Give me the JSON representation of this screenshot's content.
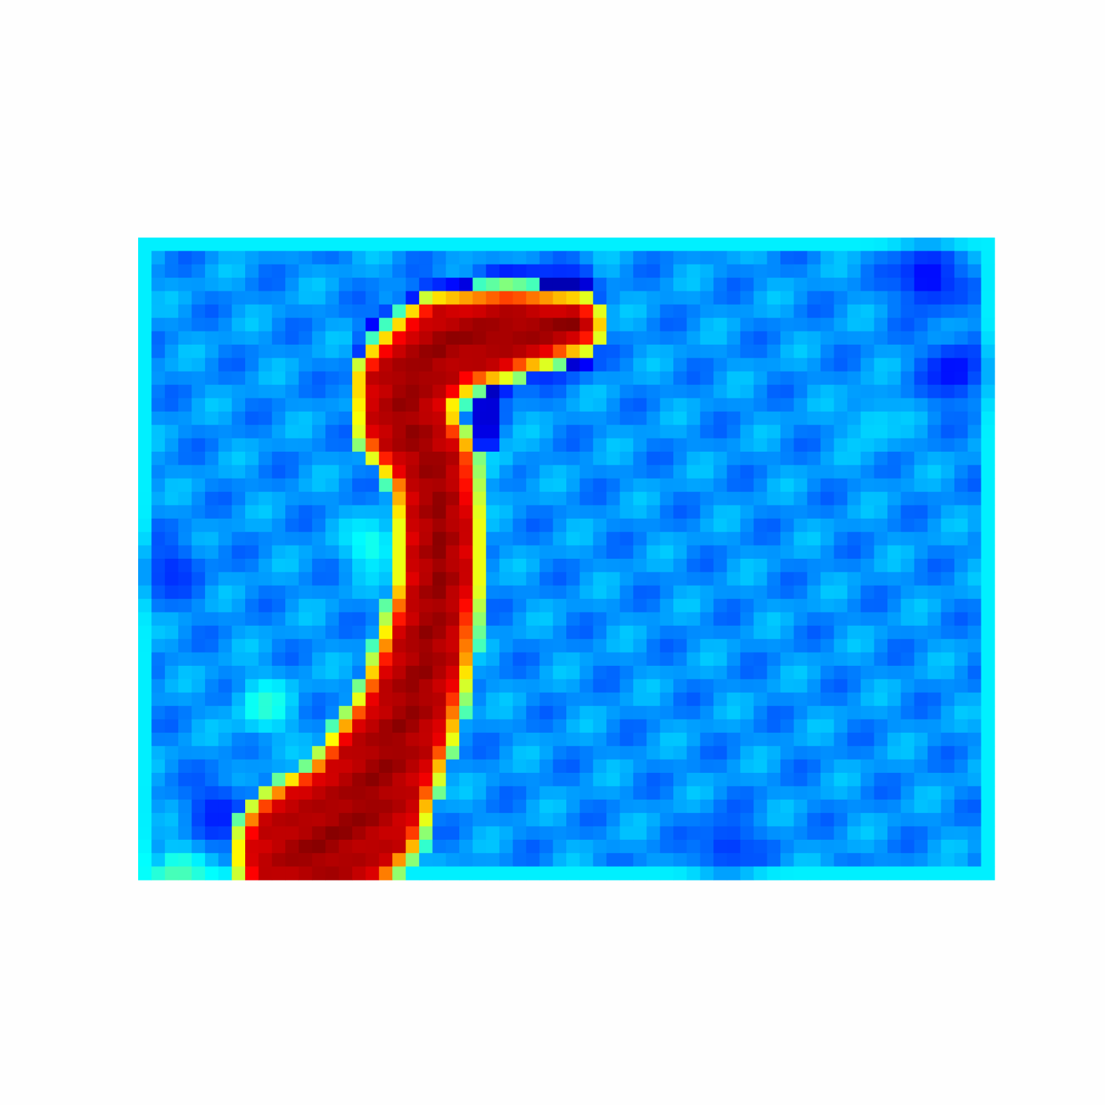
{
  "chart_data": {
    "type": "heatmap",
    "colormap": "jet",
    "colorbar": false,
    "axes_visible": false,
    "grid": false,
    "grid_shape": [
      48,
      64
    ],
    "background_value": 0.27,
    "value_range": [
      0,
      1
    ],
    "palette": {
      "dark_blue": "#00007f",
      "blue": "#0000ff",
      "sky_blue": "#0080ff",
      "azure": "#00a0ff",
      "cyan": "#00ffff",
      "yellow": "#ffff00",
      "orange": "#ff8000",
      "red": "#ff0000",
      "dark_red": "#7f0000"
    },
    "hot_region": {
      "value": 0.92,
      "centerline": [
        {
          "row": 6.5,
          "col": 32.5
        },
        {
          "row": 7,
          "col": 28
        },
        {
          "row": 8,
          "col": 23
        },
        {
          "row": 11,
          "col": 20
        },
        {
          "row": 14,
          "col": 20
        },
        {
          "row": 17,
          "col": 22
        },
        {
          "row": 21,
          "col": 22.5
        },
        {
          "row": 26,
          "col": 22.5
        },
        {
          "row": 31,
          "col": 21.5
        },
        {
          "row": 36,
          "col": 20
        },
        {
          "row": 40,
          "col": 18
        },
        {
          "row": 43,
          "col": 16.5
        },
        {
          "row": 46,
          "col": 13
        }
      ],
      "half_width": [
        1.2,
        2.2,
        2.7,
        2.7,
        2.5,
        2.2,
        2.0,
        2.0,
        2.4,
        2.8,
        3.4,
        4.0,
        4.6
      ]
    },
    "cold_rim": {
      "value": 0.05,
      "centerline": [
        {
          "row": 3.5,
          "col": 33
        },
        {
          "row": 3.5,
          "col": 27
        },
        {
          "row": 4.5,
          "col": 22
        },
        {
          "row": 7,
          "col": 18
        },
        {
          "row": 11,
          "col": 17
        },
        {
          "row": 14,
          "col": 18.5
        }
      ],
      "second_arm": [
        {
          "row": 9,
          "col": 33
        },
        {
          "row": 9.5,
          "col": 29
        },
        {
          "row": 11.5,
          "col": 26
        },
        {
          "row": 15,
          "col": 26
        }
      ]
    },
    "cyan_patches": [
      {
        "row": 16,
        "col": 26,
        "value": 0.38
      },
      {
        "row": 23,
        "col": 17.5,
        "value": 0.4
      },
      {
        "row": 35,
        "col": 9.5,
        "value": 0.42
      },
      {
        "row": 14,
        "col": 55,
        "value": 0.34
      },
      {
        "row": 47.5,
        "col": 3,
        "value": 0.45
      }
    ],
    "blue_patches": [
      {
        "row": 3,
        "col": 59,
        "value": 0.12
      },
      {
        "row": 10,
        "col": 61,
        "value": 0.13
      },
      {
        "row": 25,
        "col": 2.5,
        "value": 0.17
      },
      {
        "row": 43,
        "col": 6,
        "value": 0.15
      },
      {
        "row": 45.5,
        "col": 44,
        "value": 0.18
      }
    ]
  }
}
